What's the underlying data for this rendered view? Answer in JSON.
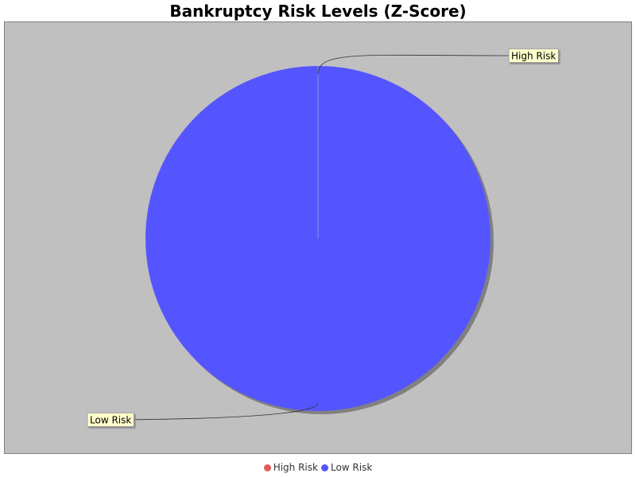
{
  "chart_data": {
    "type": "pie",
    "title": "Bankruptcy Risk Levels (Z-Score)",
    "slices": [
      {
        "label": "High Risk",
        "value": 0,
        "color": "#e35c5c"
      },
      {
        "label": "Low Risk",
        "value": 1,
        "color": "#5555ff"
      }
    ],
    "legend": {
      "placement": "bottom",
      "items": [
        "High Risk",
        "Low Risk"
      ]
    },
    "background_color": "#c0c0c0"
  }
}
